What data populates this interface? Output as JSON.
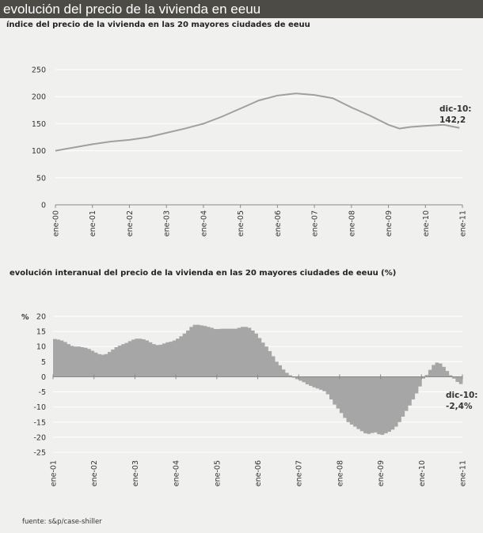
{
  "header": {
    "title": "evolución del precio de la vivienda en eeuu"
  },
  "chart_data": [
    {
      "type": "line",
      "title": "índice del precio de la vivienda  en las 20 mayores ciudades de eeuu",
      "ylim": [
        0,
        250
      ],
      "yticks": [
        0,
        50,
        100,
        150,
        200,
        250
      ],
      "xticks": [
        "ene-00",
        "ene-01",
        "ene-02",
        "ene-03",
        "ene-04",
        "ene-05",
        "ene-06",
        "ene-07",
        "ene-08",
        "ene-09",
        "ene-10",
        "ene-11"
      ],
      "xlim": [
        2000,
        2011
      ],
      "color": "#a0a0a0",
      "x": [
        2000,
        2000.5,
        2001,
        2001.5,
        2002,
        2002.5,
        2003,
        2003.5,
        2004,
        2004.5,
        2005,
        2005.5,
        2006,
        2006.5,
        2007,
        2007.5,
        2008,
        2008.5,
        2009,
        2009.3,
        2009.6,
        2010,
        2010.5,
        2010.92
      ],
      "y": [
        100,
        106,
        112,
        117,
        120,
        125,
        133,
        141,
        150,
        163,
        178,
        193,
        202,
        206,
        203,
        197,
        180,
        165,
        148,
        141,
        144,
        146,
        148,
        142.2
      ],
      "annotation": {
        "line1": "dic-10:",
        "line2": "142,2"
      }
    },
    {
      "type": "bar",
      "title": "evolución interanual del precio de la vivienda en las 20 mayores ciudades de eeuu (%)",
      "ylabel": "%",
      "ylim": [
        -25,
        20
      ],
      "yticks": [
        20,
        15,
        10,
        5,
        0,
        -5,
        -10,
        -15,
        -20,
        -25
      ],
      "xticks": [
        "ene-01",
        "ene-02",
        "ene-03",
        "ene-04",
        "ene-05",
        "ene-06",
        "ene-07",
        "ene-08",
        "ene-09",
        "ene-10",
        "ene-11"
      ],
      "start": "ene-01",
      "frequency": "monthly",
      "color": "#a6a6a6",
      "values": [
        12.5,
        12.3,
        12,
        11.5,
        10.8,
        10.2,
        10,
        10,
        9.8,
        9.6,
        9.2,
        8.6,
        8,
        7.5,
        7.3,
        7.5,
        8.2,
        9,
        9.8,
        10.3,
        10.8,
        11.2,
        11.8,
        12.3,
        12.6,
        12.6,
        12.4,
        12,
        11.4,
        10.8,
        10.5,
        10.6,
        11,
        11.4,
        11.6,
        12,
        12.6,
        13.4,
        14.3,
        15.3,
        16.5,
        17.2,
        17.2,
        17,
        16.8,
        16.5,
        16.2,
        15.8,
        15.8,
        15.9,
        15.9,
        15.9,
        15.9,
        15.9,
        16.2,
        16.5,
        16.5,
        16.2,
        15.3,
        14.3,
        12.8,
        11.3,
        10,
        8.5,
        6.8,
        5,
        3.8,
        2.4,
        1.3,
        0.5,
        -0.3,
        -0.8,
        -1.3,
        -1.8,
        -2.5,
        -3,
        -3.5,
        -3.9,
        -4.3,
        -4.8,
        -5.8,
        -7.5,
        -9.2,
        -10.5,
        -12,
        -13.6,
        -15,
        -15.8,
        -16.5,
        -17.3,
        -18,
        -18.7,
        -18.9,
        -18.6,
        -18.4,
        -19,
        -19.2,
        -18.7,
        -18.2,
        -17.5,
        -16.5,
        -15,
        -13.2,
        -11.3,
        -9.5,
        -7.5,
        -5.5,
        -3.2,
        -0.6,
        0.6,
        2.3,
        3.9,
        4.7,
        4.4,
        3.3,
        1.9,
        0.5,
        -0.6,
        -1.7,
        -2.4
      ],
      "annotation": {
        "line1": "dic-10:",
        "line2": "-2,4%"
      }
    }
  ],
  "footer": {
    "source": "fuente: s&p/case-shiller"
  }
}
